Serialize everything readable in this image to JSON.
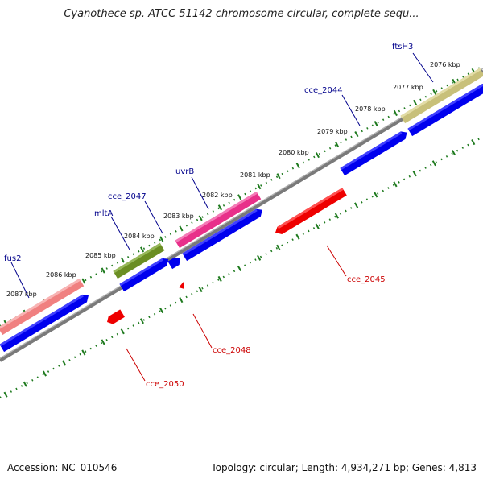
{
  "header": {
    "title": "Cyanothece sp. ATCC 51142 chromosome circular, complete sequ..."
  },
  "footer": {
    "accession": "Accession: NC_010546",
    "summary": "Topology: circular; Length: 4,934,271 bp; Genes: 4,813"
  },
  "colors": {
    "backbone": "#808080",
    "tick": "#1e7a1e",
    "cds_forward": "#0000ee",
    "rna_reverse": "#ee0000",
    "gene_pink": "#e8308a",
    "gene_olive": "#6b8e23",
    "gene_salmon": "#f08080",
    "gene_khaki": "#c8c07a"
  },
  "map": {
    "outer_scale_labels": [
      "2076 kbp",
      "2077 kbp",
      "2078 kbp",
      "2079 kbp",
      "2080 kbp",
      "2081 kbp",
      "2082 kbp",
      "2083 kbp",
      "2084 kbp",
      "2085 kbp",
      "2086 kbp",
      "2087 kbp"
    ],
    "forward_genes": [
      "ftsH3",
      "cce_2044",
      "uvrB",
      "cce_2047",
      "mltA",
      "fus2"
    ],
    "reverse_genes": [
      "cce_2045",
      "cce_2048",
      "cce_2050"
    ]
  }
}
